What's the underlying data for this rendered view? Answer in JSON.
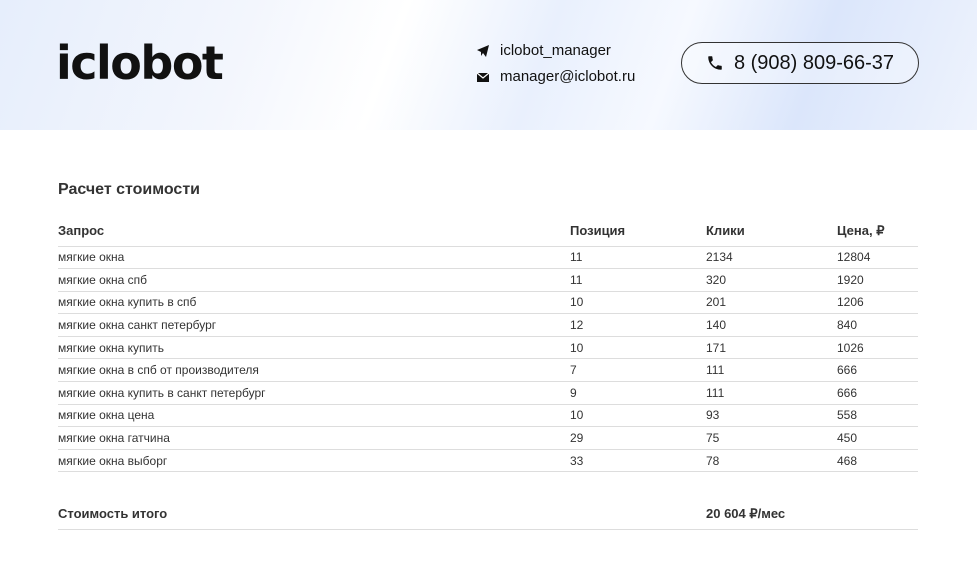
{
  "header": {
    "logo": "iclobot",
    "telegram": "iclobot_manager",
    "email": "manager@iclobot.ru",
    "phone": "8 (908) 809-66-37"
  },
  "main": {
    "title": "Расчет стоимости",
    "columns": [
      "Запрос",
      "Позиция",
      "Клики",
      "Цена, ₽"
    ],
    "rows": [
      [
        "мягкие окна",
        "11",
        "2134",
        "12804"
      ],
      [
        "мягкие окна спб",
        "11",
        "320",
        "1920"
      ],
      [
        "мягкие окна купить в спб",
        "10",
        "201",
        "1206"
      ],
      [
        "мягкие окна санкт петербург",
        "12",
        "140",
        "840"
      ],
      [
        "мягкие окна купить",
        "10",
        "171",
        "1026"
      ],
      [
        "мягкие окна в спб от производителя",
        "7",
        "111",
        "666"
      ],
      [
        "мягкие окна купить в санкт петербург",
        "9",
        "111",
        "666"
      ],
      [
        "мягкие окна цена",
        "10",
        "93",
        "558"
      ],
      [
        "мягкие окна гатчина",
        "29",
        "75",
        "450"
      ],
      [
        "мягкие окна выборг",
        "33",
        "78",
        "468"
      ]
    ],
    "total_label": "Стоимость итого",
    "total_value": "20 604 ₽/мес"
  }
}
